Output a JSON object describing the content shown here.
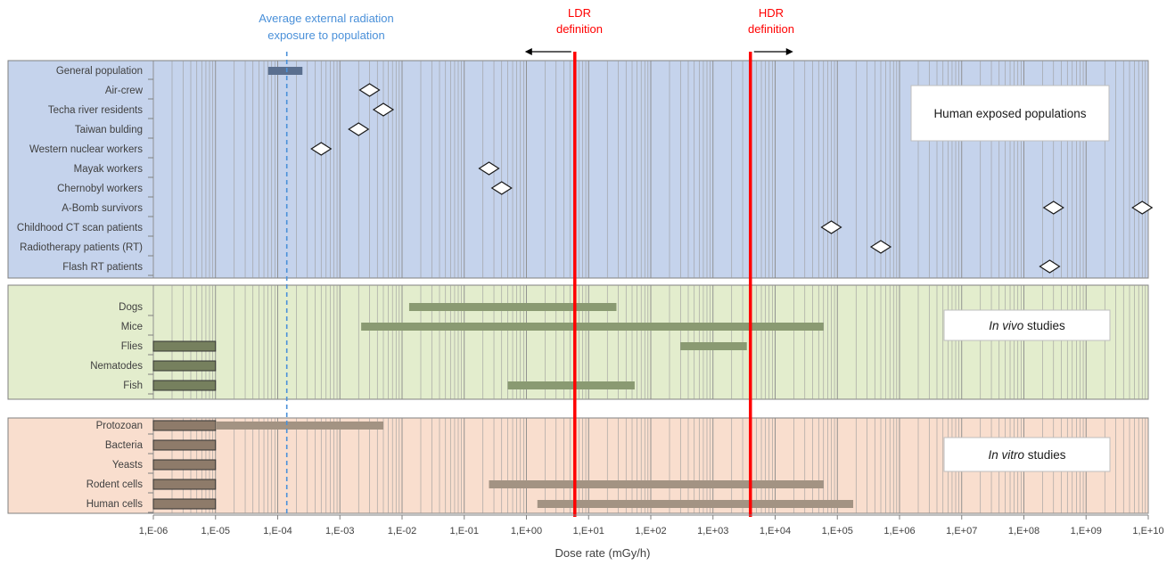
{
  "chart_data": {
    "type": "bar",
    "xlabel": "Dose rate (mGy/h)",
    "xscale": "log",
    "xlim": [
      1e-06,
      10000000000.0
    ],
    "x_ticks": [
      "1,E-06",
      "1,E-05",
      "1,E-04",
      "1,E-03",
      "1,E-02",
      "1,E-01",
      "1,E+00",
      "1,E+01",
      "1,E+02",
      "1,E+03",
      "1,E+04",
      "1,E+05",
      "1,E+06",
      "1,E+07",
      "1,E+08",
      "1,E+09",
      "1,E+10"
    ],
    "grid": true,
    "annotations": {
      "average_exposure": {
        "label_line1": "Average external radiation",
        "label_line2": "exposure to population",
        "x": 0.00014,
        "color": "#4a90d9"
      },
      "ldr": {
        "label_line1": "LDR",
        "label_line2": "definition",
        "x": 6,
        "arrow": "left",
        "color": "#ff0000"
      },
      "hdr": {
        "label_line1": "HDR",
        "label_line2": "definition",
        "x": 4000,
        "arrow": "right",
        "color": "#ff0000"
      }
    },
    "panels": [
      {
        "title": "Human exposed populations",
        "title_italic": "",
        "bg": "#c5d3ec",
        "rows": [
          {
            "label": "General population",
            "bar": [
              7e-05,
              0.00025
            ],
            "color": "#5a6f8f"
          },
          {
            "label": "Air-crew",
            "points": [
              0.003
            ]
          },
          {
            "label": "Techa river residents",
            "points": [
              0.005
            ]
          },
          {
            "label": "Taiwan bulding",
            "points": [
              0.002
            ]
          },
          {
            "label": "Western nuclear workers",
            "points": [
              0.0005
            ]
          },
          {
            "label": "Mayak workers",
            "points": [
              0.25
            ]
          },
          {
            "label": "Chernobyl workers",
            "points": [
              0.4
            ]
          },
          {
            "label": "A-Bomb survivors",
            "points": [
              300000000.0,
              8000000000.0
            ]
          },
          {
            "label": "Childhood CT scan patients",
            "points": [
              80000.0
            ]
          },
          {
            "label": "Radiotherapy patients (RT)",
            "points": [
              500000.0
            ]
          },
          {
            "label": "Flash RT patients",
            "points": [
              260000000.0
            ]
          }
        ]
      },
      {
        "title": "studies",
        "title_italic": "In vivo",
        "bg": "#e3edcd",
        "rows": [
          {
            "label": "Dogs",
            "bar": [
              0.013,
              28
            ],
            "color": "#8a9a72"
          },
          {
            "label": "Mice",
            "bar": [
              0.0022,
              60000.0
            ],
            "color": "#8a9a72"
          },
          {
            "label": "Flies",
            "bar": [
              300.0,
              3500.0
            ],
            "color": "#8a9a72",
            "box": [
              1e-06,
              1e-05
            ],
            "box_color": "#76805e"
          },
          {
            "label": "Nematodes",
            "box": [
              1e-06,
              1e-05
            ],
            "box_color": "#76805e"
          },
          {
            "label": "Fish",
            "bar": [
              0.5,
              55
            ],
            "color": "#8a9a72",
            "box": [
              1e-06,
              1e-05
            ],
            "box_color": "#76805e"
          }
        ]
      },
      {
        "title": "studies",
        "title_italic": "In vitro",
        "bg": "#f9dece",
        "rows": [
          {
            "label": "Protozoan",
            "bar": [
              1e-05,
              0.005
            ],
            "color": "#a39383",
            "box": [
              1e-06,
              1e-05
            ],
            "box_color": "#8e7b6a"
          },
          {
            "label": "Bacteria",
            "box": [
              1e-06,
              1e-05
            ],
            "box_color": "#8e7b6a"
          },
          {
            "label": "Yeasts",
            "box": [
              1e-06,
              1e-05
            ],
            "box_color": "#8e7b6a"
          },
          {
            "label": "Rodent cells",
            "bar": [
              0.25,
              60000.0
            ],
            "color": "#a39383",
            "box": [
              1e-06,
              1e-05
            ],
            "box_color": "#8e7b6a"
          },
          {
            "label": "Human cells",
            "bar": [
              1.5,
              180000.0
            ],
            "color": "#a39383",
            "box": [
              1e-06,
              1e-05
            ],
            "box_color": "#8e7b6a"
          }
        ]
      }
    ]
  }
}
